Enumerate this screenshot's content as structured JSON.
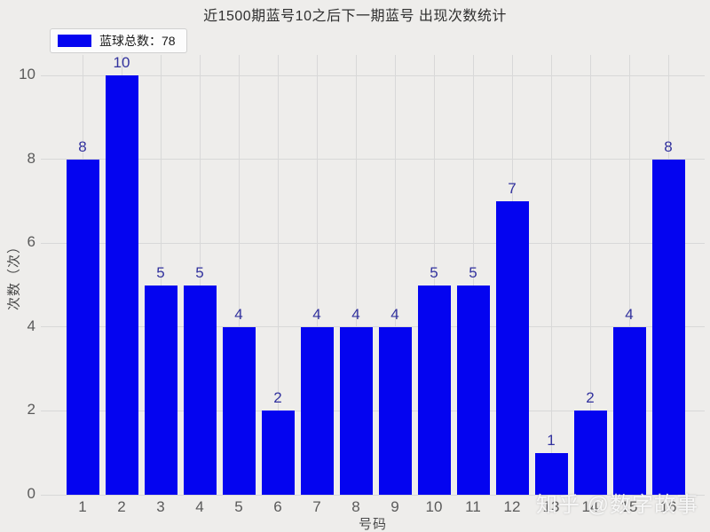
{
  "watermark": "知乎 @数字故事",
  "chart_data": {
    "type": "bar",
    "title": "近1500期蓝号10之后下一期蓝号 出现次数统计",
    "categories": [
      "1",
      "2",
      "3",
      "4",
      "5",
      "6",
      "7",
      "8",
      "9",
      "10",
      "11",
      "12",
      "13",
      "14",
      "15",
      "16"
    ],
    "values": [
      8,
      10,
      5,
      5,
      4,
      2,
      4,
      4,
      4,
      5,
      5,
      7,
      1,
      2,
      4,
      8
    ],
    "xlabel": "号码",
    "ylabel": "次数（次）",
    "ylim": [
      0,
      10.5
    ],
    "yticks": [
      0,
      2,
      4,
      6,
      8,
      10
    ],
    "grid": true,
    "legend": {
      "label": "蓝球总数：78",
      "position": "upper-left"
    },
    "colors": {
      "bar": "#0404f0",
      "bar_value_label": "#32329e",
      "background": "#eeedeb",
      "gridline": "#d8d8d8",
      "tick_label": "#5a5a5a"
    },
    "total": 78
  }
}
